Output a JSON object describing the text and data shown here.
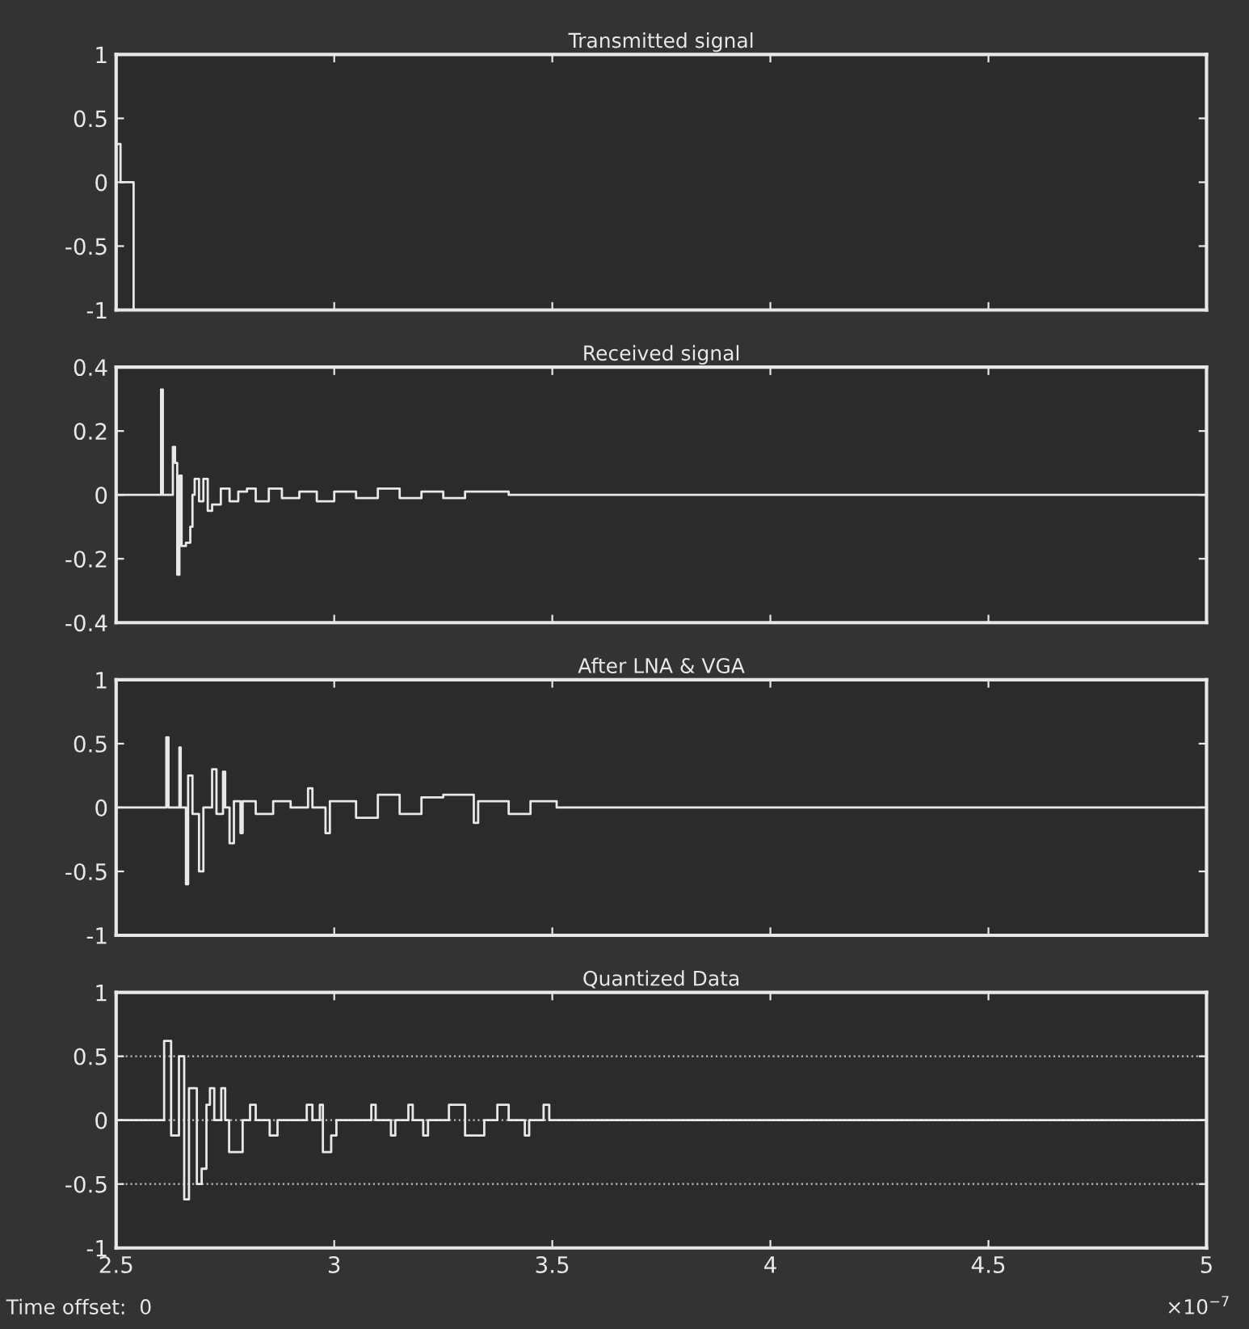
{
  "chart_data": [
    {
      "type": "step",
      "title": "Transmitted signal",
      "x": [
        2.5,
        2.51,
        2.54,
        5
      ],
      "values": [
        0.3,
        0,
        -1,
        -1
      ],
      "color": "#e8e8e8",
      "xlim": [
        2.5,
        5
      ],
      "ylim": [
        -1,
        1
      ],
      "xticks": [
        2.5,
        3,
        3.5,
        4,
        4.5,
        5
      ],
      "yticks": [
        -1,
        -0.5,
        0,
        0.5,
        1
      ],
      "tick_labels": "y"
    },
    {
      "type": "step",
      "title": "Received signal",
      "x": [
        2.5,
        2.6,
        2.603,
        2.607,
        2.63,
        2.635,
        2.64,
        2.645,
        2.65,
        2.66,
        2.67,
        2.675,
        2.68,
        2.69,
        2.7,
        2.71,
        2.72,
        2.74,
        2.76,
        2.78,
        2.8,
        2.82,
        2.85,
        2.88,
        2.92,
        2.96,
        3.0,
        3.05,
        3.1,
        3.15,
        3.2,
        3.25,
        3.3,
        3.4,
        5
      ],
      "values": [
        0,
        0,
        0.33,
        0,
        0.15,
        0.1,
        -0.25,
        0.06,
        -0.16,
        -0.15,
        -0.1,
        0,
        0.05,
        -0.02,
        0.05,
        -0.05,
        -0.03,
        0.02,
        -0.02,
        0.01,
        0.02,
        -0.02,
        0.02,
        -0.01,
        0.01,
        -0.02,
        0.01,
        -0.01,
        0.02,
        -0.01,
        0.01,
        -0.01,
        0.01,
        0,
        0
      ],
      "color": "#e8e8e8",
      "xlim": [
        2.5,
        5
      ],
      "ylim": [
        -0.4,
        0.4
      ],
      "xticks": [
        2.5,
        3,
        3.5,
        4,
        4.5,
        5
      ],
      "yticks": [
        -0.4,
        -0.2,
        0,
        0.2,
        0.4
      ],
      "tick_labels": "y"
    },
    {
      "type": "step",
      "title": "After LNA & VGA",
      "x": [
        2.5,
        2.61,
        2.615,
        2.62,
        2.645,
        2.648,
        2.66,
        2.665,
        2.675,
        2.69,
        2.7,
        2.72,
        2.73,
        2.745,
        2.75,
        2.76,
        2.77,
        2.785,
        2.79,
        2.82,
        2.86,
        2.9,
        2.94,
        2.95,
        2.98,
        2.99,
        3.05,
        3.1,
        3.15,
        3.2,
        3.25,
        3.32,
        3.33,
        3.4,
        3.45,
        3.51,
        5
      ],
      "values": [
        0,
        0,
        0.55,
        0,
        0.47,
        0,
        -0.6,
        0.25,
        -0.05,
        -0.5,
        0,
        0.3,
        -0.05,
        0.28,
        0,
        -0.28,
        0.05,
        -0.2,
        0.05,
        -0.05,
        0.05,
        0,
        0.15,
        0,
        -0.2,
        0.05,
        -0.08,
        0.1,
        -0.05,
        0.08,
        0.1,
        -0.12,
        0.05,
        -0.05,
        0.05,
        0,
        0
      ],
      "color": "#e8e8e8",
      "xlim": [
        2.5,
        5
      ],
      "ylim": [
        -1,
        1
      ],
      "xticks": [
        2.5,
        3,
        3.5,
        4,
        4.5,
        5
      ],
      "yticks": [
        -1,
        -0.5,
        0,
        0.5,
        1
      ],
      "tick_labels": "y"
    },
    {
      "type": "step",
      "title": "Quantized Data",
      "x": [
        2.5,
        2.61,
        2.626,
        2.644,
        2.656,
        2.667,
        2.685,
        2.696,
        2.707,
        2.715,
        2.725,
        2.741,
        2.75,
        2.759,
        2.78,
        2.79,
        2.807,
        2.82,
        2.852,
        2.87,
        2.937,
        2.95,
        2.967,
        2.974,
        2.993,
        3.005,
        3.085,
        3.095,
        3.13,
        3.14,
        3.17,
        3.18,
        3.204,
        3.215,
        3.263,
        3.3,
        3.344,
        3.374,
        3.4,
        3.437,
        3.447,
        3.48,
        3.493,
        5
      ],
      "values": [
        0,
        0.62,
        -0.12,
        0.5,
        -0.62,
        0.25,
        -0.5,
        -0.38,
        0.12,
        0.25,
        0,
        0.25,
        0,
        -0.25,
        -0.25,
        0,
        0.12,
        0,
        -0.12,
        0,
        0.12,
        0,
        0.12,
        -0.25,
        -0.12,
        0,
        0.12,
        0,
        -0.12,
        0,
        0.12,
        0,
        -0.12,
        0,
        0.12,
        -0.12,
        0,
        0.12,
        0,
        -0.12,
        0,
        0.12,
        0,
        0
      ],
      "color": "#e8e8e8",
      "xlim": [
        2.5,
        5
      ],
      "ylim": [
        -1,
        1
      ],
      "xticks": [
        2.5,
        3,
        3.5,
        4,
        4.5,
        5
      ],
      "yticks": [
        -1,
        -0.5,
        0,
        0.5,
        1
      ],
      "grid": "y",
      "annotations": [
        "Time offset:  0",
        "×10$^{−7}$"
      ]
    }
  ]
}
